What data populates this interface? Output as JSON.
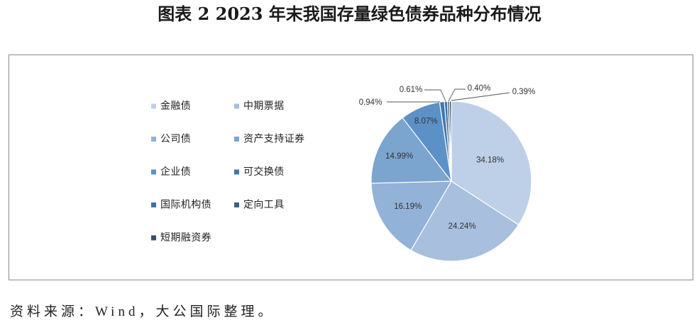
{
  "chart_data": {
    "type": "pie",
    "title": "图表 2 2023 年末我国存量绿色债券品种分布情况",
    "categories": [
      "金融债",
      "中期票据",
      "公司债",
      "资产支持证券",
      "企业债",
      "可交换债",
      "国际机构债",
      "定向工具",
      "短期融资券"
    ],
    "values": [
      34.18,
      24.24,
      16.19,
      14.99,
      8.07,
      0.94,
      0.61,
      0.4,
      0.39
    ],
    "data_labels": [
      "34.18%",
      "24.24%",
      "16.19%",
      "14.99%",
      "8.07%",
      "0.94%",
      "0.61%",
      "0.40%",
      "0.39%"
    ],
    "colors": [
      "#bdd0e7",
      "#a8bfdd",
      "#93b2d7",
      "#7ba4cf",
      "#5b91c7",
      "#4077b0",
      "#43709f",
      "#3e5f86",
      "#3a4f6c"
    ],
    "legend_position": "left"
  },
  "source_note": "资料来源：Wind，大公国际整理。"
}
